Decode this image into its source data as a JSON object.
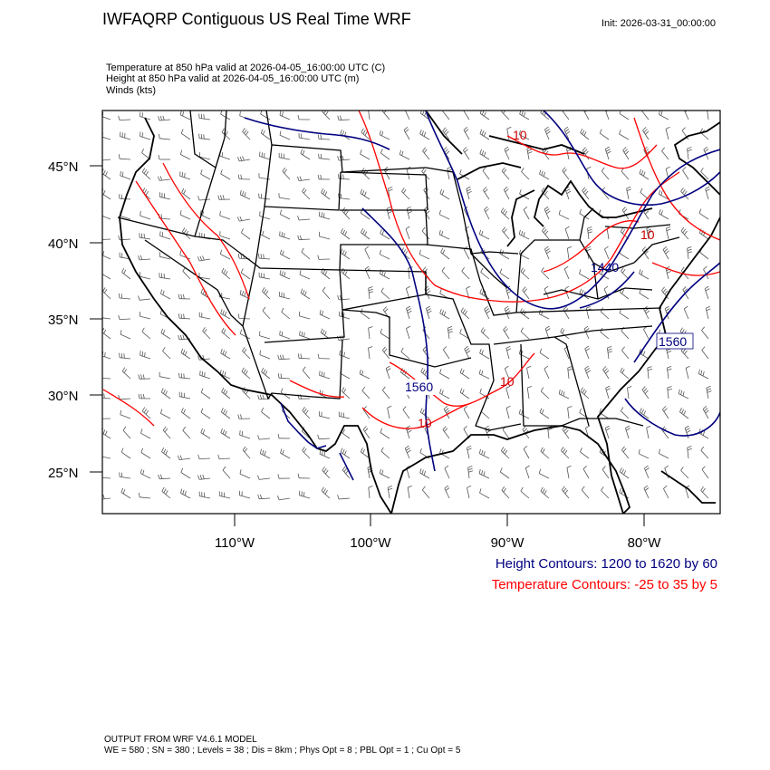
{
  "header": {
    "title": "IWFAQRP Contiguous US Real Time WRF",
    "init": "Init: 2026-03-31_00:00:00"
  },
  "subtitles": {
    "temperature": "Temperature at 850 hPa valid at 2026-04-05_16:00:00 UTC   (C)",
    "height": "Height at 850 hPa valid at 2026-04-05_16:00:00 UTC   (m)",
    "winds": "Winds   (kts)"
  },
  "map": {
    "lat_labels": [
      "45°N",
      "40°N",
      "35°N",
      "30°N",
      "25°N"
    ],
    "lon_labels": [
      "110°W",
      "100°W",
      "90°W",
      "80°W"
    ],
    "contour_labels": {
      "height": [
        "1560",
        "1560",
        "1440"
      ],
      "temperature": [
        "10",
        "10",
        "10",
        "10"
      ]
    },
    "colors": {
      "height": "#000080",
      "temperature": "#ff0000",
      "borders": "#000000"
    }
  },
  "legend": {
    "height_contours": "Height Contours: 1200 to 1620 by 60",
    "temperature_contours": "Temperature Contours: -25 to 35 by 5"
  },
  "footer": {
    "line1": "OUTPUT FROM WRF V4.6.1 MODEL",
    "line2": "WE = 580 ; SN = 380 ; Levels = 38 ; Dis = 8km ; Phys Opt = 8 ; PBL Opt = 1 ; Cu Opt = 5"
  }
}
